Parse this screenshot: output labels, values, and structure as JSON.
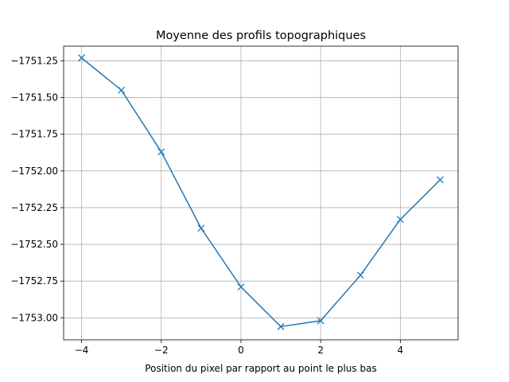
{
  "chart_data": {
    "type": "line",
    "title": "Moyenne des profils topographiques",
    "xlabel": "Position du pixel par rapport au point le plus bas",
    "ylabel": "",
    "x": [
      -4,
      -3,
      -2,
      -1,
      0,
      1,
      2,
      3,
      4,
      5
    ],
    "series": [
      {
        "values": [
          -1751.23,
          -1751.45,
          -1751.87,
          -1752.39,
          -1752.79,
          -1753.06,
          -1753.02,
          -1752.71,
          -1752.33,
          -1752.06
        ],
        "color": "#1f77b4",
        "marker": "x"
      }
    ],
    "xlim": [
      -4.45,
      5.45
    ],
    "ylim": [
      -1753.15,
      -1751.15
    ],
    "xticks": [
      -4,
      -2,
      0,
      2,
      4
    ],
    "xtick_labels": [
      "−4",
      "−2",
      "0",
      "2",
      "4"
    ],
    "yticks": [
      -1751.25,
      -1751.5,
      -1751.75,
      -1752.0,
      -1752.25,
      -1752.5,
      -1752.75,
      -1753.0
    ],
    "ytick_labels": [
      "−1751.25",
      "−1751.50",
      "−1751.75",
      "−1752.00",
      "−1752.25",
      "−1752.50",
      "−1752.75",
      "−1753.00"
    ],
    "grid": true
  }
}
